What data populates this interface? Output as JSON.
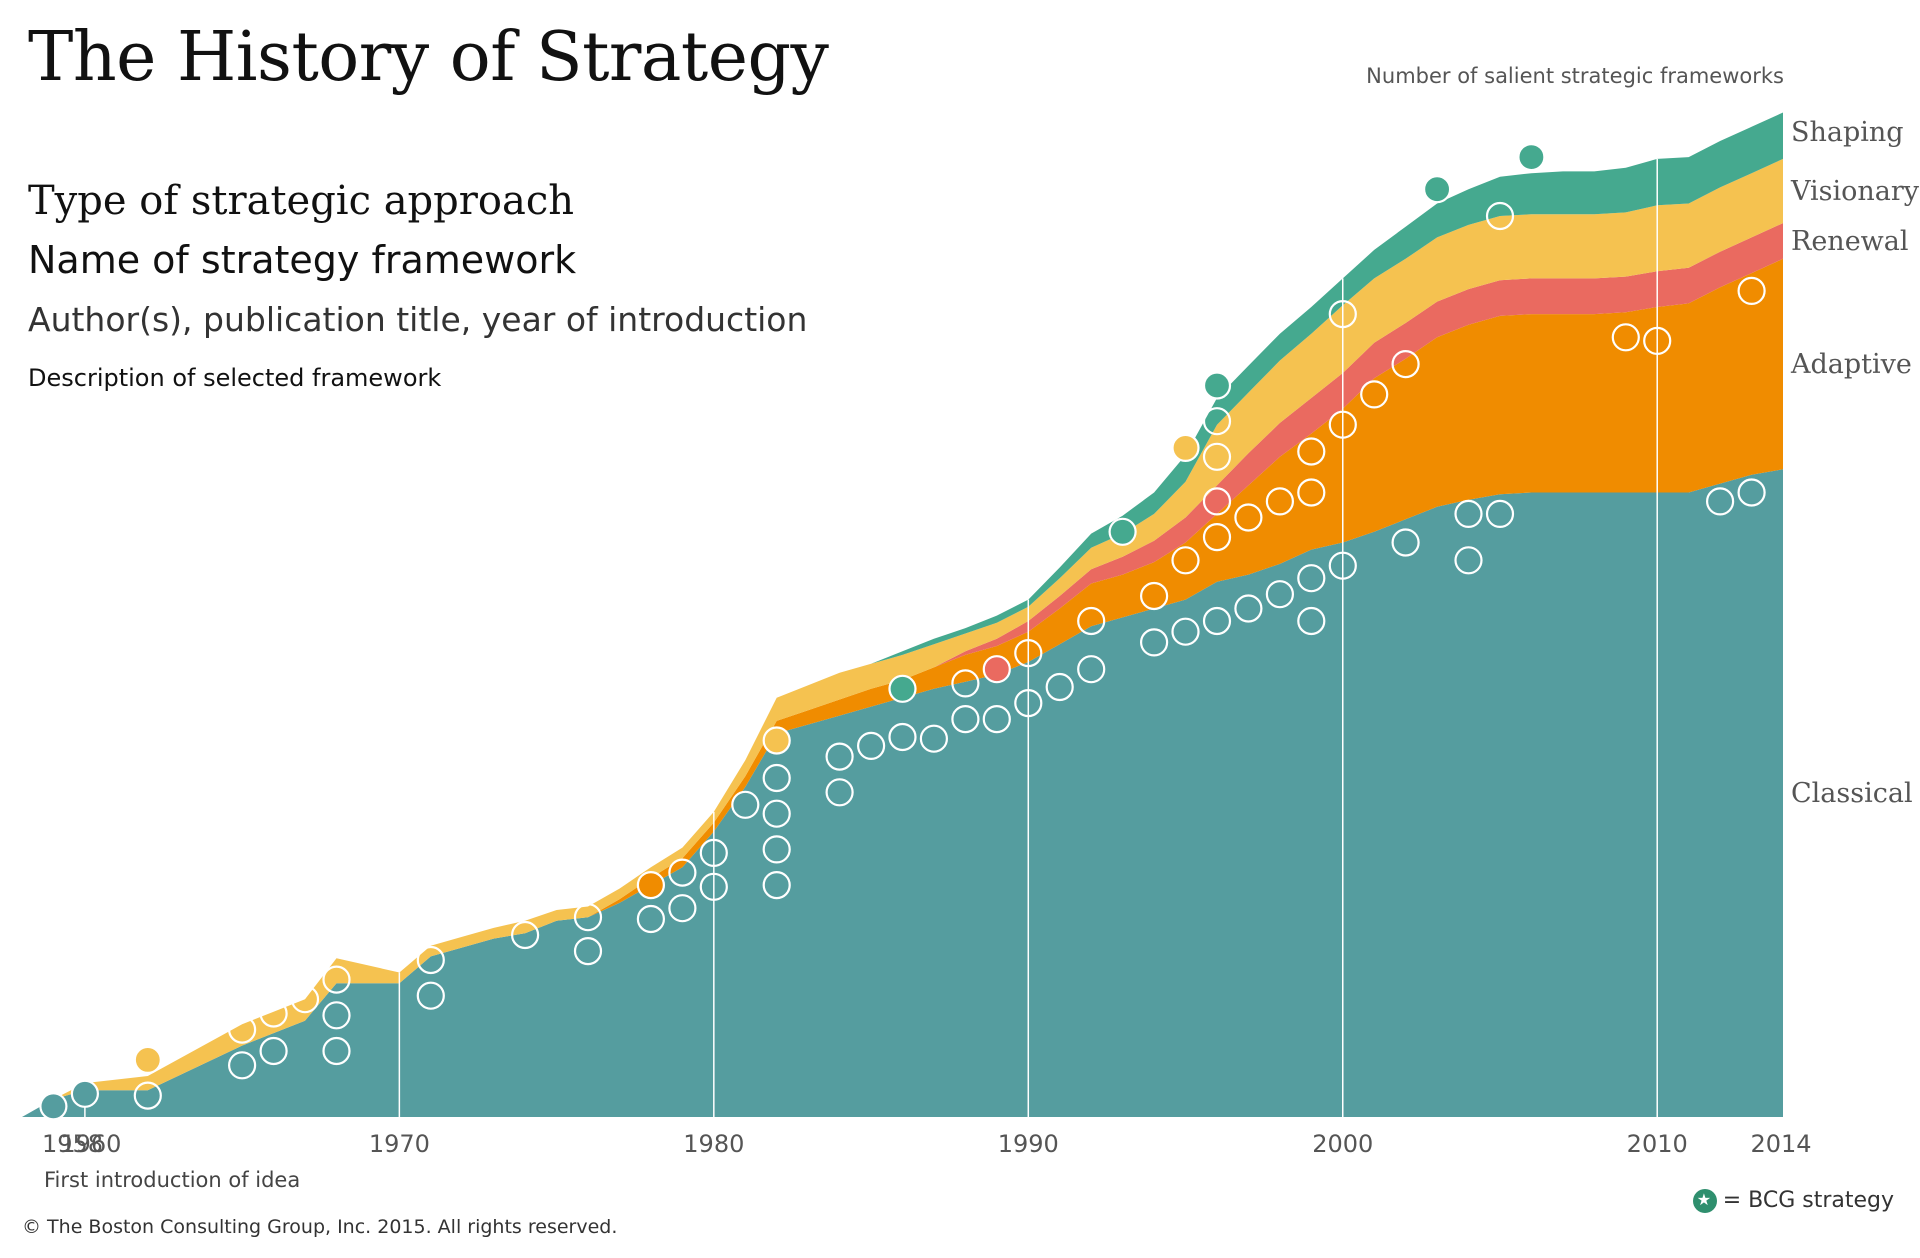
{
  "header": {
    "title": "The History of Strategy",
    "info_line1": "Type of strategic approach",
    "info_line2": "Name of strategy framework",
    "info_line3": "Author(s), publication title, year of introduction",
    "info_line4": "Description of selected framework"
  },
  "footer": {
    "x_note": "First introduction of idea",
    "copyright": "© The Boston Consulting Group, Inc. 2015. All rights reserved.",
    "legend_text": "= BCG strategy",
    "legend_icon": "star-icon"
  },
  "colors": {
    "classical": "#559d9f",
    "adaptive": "#f08c00",
    "renewal": "#ea6a60",
    "visionary": "#f5c250",
    "shaping": "#45a98f",
    "gridline": "#ffffff"
  },
  "chart_data": {
    "type": "area",
    "stacked": true,
    "ylabel": "Number of salient strategic frameworks",
    "x_ticks": [
      "1958",
      "1960",
      "1970",
      "1980",
      "1990",
      "2000",
      "2010",
      "2014"
    ],
    "x_range": [
      1958,
      2014
    ],
    "y_range": [
      0,
      57
    ],
    "vertical_gridlines": [
      1960,
      1970,
      1980,
      1990,
      2000,
      2010
    ],
    "x": [
      1958,
      1959,
      1960,
      1962,
      1965,
      1966,
      1967,
      1968,
      1970,
      1971,
      1972,
      1973,
      1974,
      1975,
      1976,
      1977,
      1978,
      1979,
      1980,
      1981,
      1982,
      1983,
      1984,
      1985,
      1986,
      1987,
      1988,
      1989,
      1990,
      1991,
      1992,
      1993,
      1994,
      1995,
      1996,
      1997,
      1998,
      1999,
      2000,
      2001,
      2002,
      2003,
      2004,
      2005,
      2006,
      2007,
      2008,
      2009,
      2010,
      2011,
      2012,
      2013,
      2014
    ],
    "series": [
      {
        "name": "Classical",
        "key": "classical",
        "values": [
          0,
          1,
          1.5,
          1.5,
          4,
          4.7,
          5.4,
          7.5,
          7.5,
          9,
          9.5,
          10,
          10.3,
          11,
          11.2,
          12,
          13,
          14,
          16,
          18.5,
          21.5,
          22,
          22.5,
          23,
          23.5,
          24,
          24.4,
          24.8,
          25.5,
          26.5,
          27.5,
          28,
          28.5,
          29,
          30,
          30.4,
          31,
          31.8,
          32.2,
          32.8,
          33.5,
          34.2,
          34.6,
          34.9,
          35,
          35,
          35,
          35,
          35,
          35,
          35.5,
          36,
          36.3
        ]
      },
      {
        "name": "Adaptive",
        "key": "adaptive",
        "values": [
          0,
          0,
          0,
          0,
          0,
          0,
          0,
          0,
          0,
          0,
          0,
          0,
          0,
          0,
          0,
          0.2,
          0.4,
          0.5,
          0.5,
          0.6,
          0.7,
          0.8,
          0.9,
          1,
          1,
          1.2,
          1.5,
          1.6,
          1.7,
          2,
          2.4,
          2.4,
          2.6,
          3.2,
          3.8,
          5,
          6,
          6.5,
          7.5,
          8.6,
          9,
          9.5,
          9.8,
          10,
          10,
          10,
          10,
          10.1,
          10.4,
          10.6,
          11,
          11.3,
          11.8
        ]
      },
      {
        "name": "Renewal",
        "key": "renewal",
        "values": [
          0,
          0,
          0,
          0,
          0,
          0,
          0,
          0,
          0,
          0,
          0,
          0,
          0,
          0,
          0,
          0,
          0,
          0,
          0,
          0,
          0,
          0,
          0,
          0,
          0,
          0,
          0.2,
          0.4,
          0.6,
          0.7,
          0.8,
          1,
          1.2,
          1.4,
          1.6,
          1.8,
          1.9,
          2,
          2,
          2,
          2,
          2,
          2,
          2,
          2,
          2,
          2,
          2,
          2,
          2,
          2,
          2,
          2
        ]
      },
      {
        "name": "Visionary",
        "key": "visionary",
        "values": [
          0,
          0,
          0.4,
          0.8,
          1.2,
          1.2,
          1.2,
          1.4,
          0.6,
          0.6,
          0.6,
          0.6,
          0.7,
          0.6,
          0.6,
          0.6,
          0.6,
          0.6,
          0.6,
          0.9,
          1.3,
          1.4,
          1.5,
          1.4,
          1.4,
          1.3,
          1,
          0.9,
          0.8,
          1,
          1.2,
          1.3,
          1.5,
          2,
          3.4,
          3.4,
          3.5,
          3.6,
          3.8,
          3.6,
          3.6,
          3.6,
          3.6,
          3.6,
          3.6,
          3.6,
          3.6,
          3.6,
          3.7,
          3.6,
          3.6,
          3.6,
          3.6
        ]
      },
      {
        "name": "Shaping",
        "key": "shaping",
        "values": [
          0,
          0,
          0,
          0,
          0,
          0,
          0,
          0,
          0,
          0,
          0,
          0,
          0,
          0,
          0,
          0,
          0,
          0,
          0,
          0,
          0,
          0,
          0,
          0,
          0.2,
          0.3,
          0.3,
          0.4,
          0.4,
          0.6,
          0.8,
          1,
          1.2,
          1.5,
          1.5,
          1.5,
          1.5,
          1.5,
          1.5,
          1.6,
          1.8,
          1.9,
          2,
          2.2,
          2.3,
          2.4,
          2.4,
          2.5,
          2.6,
          2.6,
          2.6,
          2.6,
          2.6
        ]
      }
    ],
    "markers": [
      {
        "x": 1959,
        "y": 0.6,
        "type": "classical",
        "bcg": true
      },
      {
        "x": 1960,
        "y": 1.3,
        "type": "classical",
        "bcg": true
      },
      {
        "x": 1962,
        "y": 1.2,
        "type": "classical",
        "bcg": false
      },
      {
        "x": 1962,
        "y": 3.2,
        "type": "visionary",
        "bcg": true
      },
      {
        "x": 1965,
        "y": 2.9,
        "type": "classical",
        "bcg": false
      },
      {
        "x": 1965,
        "y": 4.9,
        "type": "classical",
        "bcg": false
      },
      {
        "x": 1966,
        "y": 3.7,
        "type": "classical",
        "bcg": false
      },
      {
        "x": 1966,
        "y": 5.8,
        "type": "classical",
        "bcg": false
      },
      {
        "x": 1967,
        "y": 6.6,
        "type": "classical",
        "bcg": false
      },
      {
        "x": 1968,
        "y": 3.7,
        "type": "classical",
        "bcg": false
      },
      {
        "x": 1968,
        "y": 5.7,
        "type": "classical",
        "bcg": false
      },
      {
        "x": 1968,
        "y": 7.7,
        "type": "classical",
        "bcg": false
      },
      {
        "x": 1971,
        "y": 6.8,
        "type": "classical",
        "bcg": false
      },
      {
        "x": 1971,
        "y": 8.8,
        "type": "classical",
        "bcg": false
      },
      {
        "x": 1974,
        "y": 10.2,
        "type": "classical",
        "bcg": false
      },
      {
        "x": 1976,
        "y": 9.3,
        "type": "classical",
        "bcg": false
      },
      {
        "x": 1976,
        "y": 11.2,
        "type": "classical",
        "bcg": false
      },
      {
        "x": 1978,
        "y": 11.1,
        "type": "classical",
        "bcg": false
      },
      {
        "x": 1978,
        "y": 13.0,
        "type": "adaptive",
        "bcg": true
      },
      {
        "x": 1979,
        "y": 11.7,
        "type": "classical",
        "bcg": false
      },
      {
        "x": 1979,
        "y": 13.7,
        "type": "classical",
        "bcg": false
      },
      {
        "x": 1980,
        "y": 12.9,
        "type": "classical",
        "bcg": false
      },
      {
        "x": 1980,
        "y": 14.8,
        "type": "classical",
        "bcg": false
      },
      {
        "x": 1981,
        "y": 17.5,
        "type": "classical",
        "bcg": true
      },
      {
        "x": 1982,
        "y": 13.0,
        "type": "classical",
        "bcg": false
      },
      {
        "x": 1982,
        "y": 15.0,
        "type": "classical",
        "bcg": false
      },
      {
        "x": 1982,
        "y": 17.0,
        "type": "classical",
        "bcg": false
      },
      {
        "x": 1982,
        "y": 19.0,
        "type": "classical",
        "bcg": false
      },
      {
        "x": 1982,
        "y": 21.1,
        "type": "visionary",
        "bcg": true
      },
      {
        "x": 1984,
        "y": 18.2,
        "type": "classical",
        "bcg": false
      },
      {
        "x": 1984,
        "y": 20.2,
        "type": "classical",
        "bcg": false
      },
      {
        "x": 1985,
        "y": 20.8,
        "type": "classical",
        "bcg": false
      },
      {
        "x": 1986,
        "y": 21.3,
        "type": "classical",
        "bcg": false
      },
      {
        "x": 1986,
        "y": 24.0,
        "type": "shaping",
        "bcg": true
      },
      {
        "x": 1987,
        "y": 21.2,
        "type": "classical",
        "bcg": false
      },
      {
        "x": 1988,
        "y": 22.3,
        "type": "adaptive",
        "bcg": false
      },
      {
        "x": 1988,
        "y": 24.3,
        "type": "visionary",
        "bcg": false
      },
      {
        "x": 1989,
        "y": 22.3,
        "type": "classical",
        "bcg": false
      },
      {
        "x": 1989,
        "y": 25.1,
        "type": "renewal",
        "bcg": true
      },
      {
        "x": 1990,
        "y": 23.2,
        "type": "classical",
        "bcg": false
      },
      {
        "x": 1990,
        "y": 26.0,
        "type": "renewal",
        "bcg": false
      },
      {
        "x": 1991,
        "y": 24.1,
        "type": "classical",
        "bcg": false
      },
      {
        "x": 1992,
        "y": 25.1,
        "type": "classical",
        "bcg": false
      },
      {
        "x": 1992,
        "y": 27.8,
        "type": "adaptive",
        "bcg": false
      },
      {
        "x": 1993,
        "y": 32.8,
        "type": "shaping",
        "bcg": true
      },
      {
        "x": 1994,
        "y": 26.6,
        "type": "classical",
        "bcg": false
      },
      {
        "x": 1994,
        "y": 29.2,
        "type": "adaptive",
        "bcg": false
      },
      {
        "x": 1995,
        "y": 27.2,
        "type": "classical",
        "bcg": false
      },
      {
        "x": 1995,
        "y": 31.2,
        "type": "adaptive",
        "bcg": false
      },
      {
        "x": 1995,
        "y": 37.5,
        "type": "visionary",
        "bcg": true
      },
      {
        "x": 1996,
        "y": 27.8,
        "type": "classical",
        "bcg": false
      },
      {
        "x": 1996,
        "y": 32.5,
        "type": "adaptive",
        "bcg": false
      },
      {
        "x": 1996,
        "y": 34.5,
        "type": "renewal",
        "bcg": false
      },
      {
        "x": 1996,
        "y": 37.0,
        "type": "visionary",
        "bcg": false
      },
      {
        "x": 1996,
        "y": 39.0,
        "type": "visionary",
        "bcg": false
      },
      {
        "x": 1996,
        "y": 41.0,
        "type": "shaping",
        "bcg": true
      },
      {
        "x": 1997,
        "y": 28.5,
        "type": "classical",
        "bcg": false
      },
      {
        "x": 1997,
        "y": 33.6,
        "type": "adaptive",
        "bcg": false
      },
      {
        "x": 1998,
        "y": 29.3,
        "type": "classical",
        "bcg": false
      },
      {
        "x": 1998,
        "y": 34.5,
        "type": "adaptive",
        "bcg": false
      },
      {
        "x": 1999,
        "y": 27.8,
        "type": "classical",
        "bcg": false
      },
      {
        "x": 1999,
        "y": 30.2,
        "type": "classical",
        "bcg": false
      },
      {
        "x": 1999,
        "y": 35.0,
        "type": "adaptive",
        "bcg": false
      },
      {
        "x": 1999,
        "y": 37.3,
        "type": "adaptive",
        "bcg": false
      },
      {
        "x": 2000,
        "y": 30.9,
        "type": "classical",
        "bcg": false
      },
      {
        "x": 2000,
        "y": 38.8,
        "type": "adaptive",
        "bcg": false
      },
      {
        "x": 2000,
        "y": 45.0,
        "type": "visionary",
        "bcg": false
      },
      {
        "x": 2001,
        "y": 40.5,
        "type": "adaptive",
        "bcg": false
      },
      {
        "x": 2002,
        "y": 32.2,
        "type": "classical",
        "bcg": false
      },
      {
        "x": 2002,
        "y": 42.2,
        "type": "adaptive",
        "bcg": false
      },
      {
        "x": 2003,
        "y": 52.0,
        "type": "shaping",
        "bcg": true
      },
      {
        "x": 2004,
        "y": 31.2,
        "type": "classical",
        "bcg": false
      },
      {
        "x": 2004,
        "y": 33.8,
        "type": "classical",
        "bcg": false
      },
      {
        "x": 2005,
        "y": 33.8,
        "type": "classical",
        "bcg": false
      },
      {
        "x": 2005,
        "y": 50.5,
        "type": "visionary",
        "bcg": false
      },
      {
        "x": 2006,
        "y": 53.8,
        "type": "shaping",
        "bcg": true
      },
      {
        "x": 2009,
        "y": 43.7,
        "type": "adaptive",
        "bcg": false
      },
      {
        "x": 2010,
        "y": 43.5,
        "type": "adaptive",
        "bcg": false
      },
      {
        "x": 2012,
        "y": 34.5,
        "type": "classical",
        "bcg": false
      },
      {
        "x": 2013,
        "y": 35.0,
        "type": "classical",
        "bcg": false
      },
      {
        "x": 2013,
        "y": 46.3,
        "type": "adaptive",
        "bcg": false
      }
    ]
  }
}
